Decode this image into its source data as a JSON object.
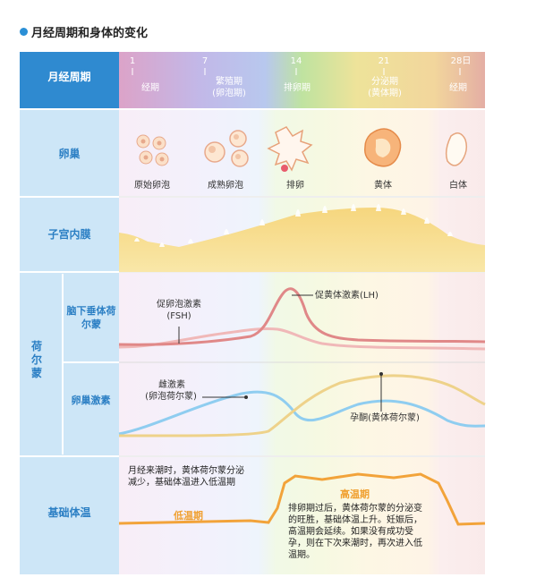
{
  "title": "月经周期和身体的变化",
  "header": {
    "row_label": "月经周期",
    "days": [
      "1",
      "7",
      "14",
      "21",
      "28日"
    ],
    "phases": [
      "经期",
      "繁殖期",
      "(卵泡期)",
      "排卵期",
      "分泌期",
      "(黄体期)",
      "经期"
    ]
  },
  "ovary": {
    "label": "卵巢",
    "stages": [
      "原始卵泡",
      "成熟卵泡",
      "排卵",
      "黄体",
      "白体"
    ]
  },
  "endometrium": {
    "label": "子宫内膜"
  },
  "hormone": {
    "group_label": "荷尔蒙",
    "pituitary_label": "脑下垂体荷尔蒙",
    "fsh_label": "促卵泡激素",
    "fsh_abbr": "(FSH)",
    "lh_label": "促黄体激素(LH)",
    "ovary_label": "卵巢激素",
    "estrogen_label": "雌激素",
    "estrogen_sub": "(卵泡荷尔蒙)",
    "progesterone_label": "孕酮(黄体荷尔蒙)"
  },
  "temperature": {
    "label": "基础体温",
    "low_label": "低温期",
    "high_label": "高温期",
    "note_low": "月经来潮时，黄体荷尔蒙分泌减少，基础体温进入低温期",
    "note_high": "排卵期过后，黄体荷尔蒙的分泌变的旺胜，基础体温上升。妊娠后，高温期会延续。如果没有成功受孕，则在下次来潮时，再次进入低温期。"
  },
  "colors": {
    "label_col": "#cde6f7",
    "label_text": "#2b7fc4",
    "phase_menses": "#e0a9cc",
    "phase_follicular": "#c4c4ec",
    "phase_ovulation": "#c8e6a4",
    "phase_luteal": "#f4dd9c",
    "phase_menses2": "#e6b6a8",
    "fsh_line": "#f0b8b8",
    "lh_line": "#e08888",
    "estrogen_line": "#8fcdf0",
    "progesterone_line": "#eed28a",
    "temperature_line": "#f2a33a"
  }
}
